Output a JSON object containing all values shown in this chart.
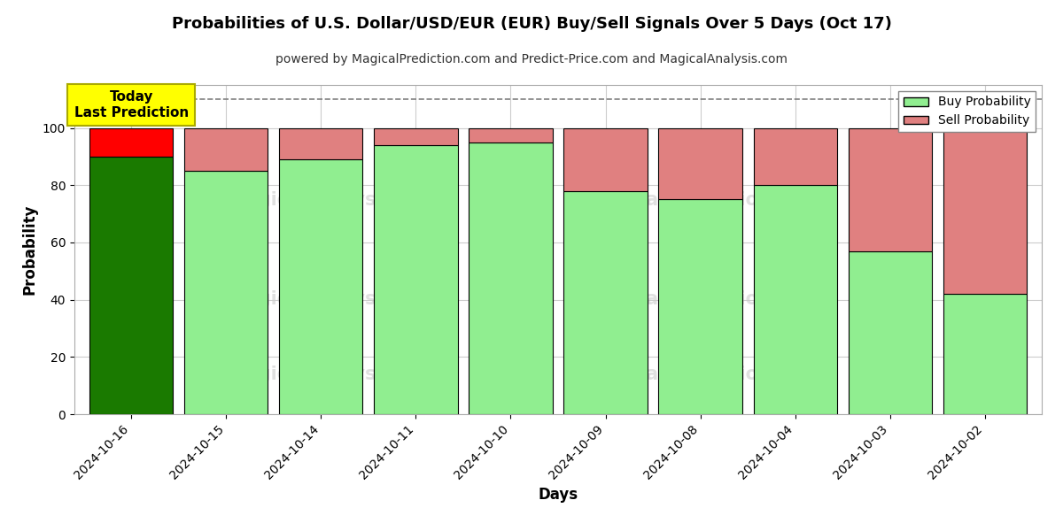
{
  "title": "Probabilities of U.S. Dollar/USD/EUR (EUR) Buy/Sell Signals Over 5 Days (Oct 17)",
  "subtitle": "powered by MagicalPrediction.com and Predict-Price.com and MagicalAnalysis.com",
  "xlabel": "Days",
  "ylabel": "Probability",
  "categories": [
    "2024-10-16",
    "2024-10-15",
    "2024-10-14",
    "2024-10-11",
    "2024-10-10",
    "2024-10-09",
    "2024-10-08",
    "2024-10-04",
    "2024-10-03",
    "2024-10-02"
  ],
  "buy_values": [
    90,
    85,
    89,
    94,
    95,
    78,
    75,
    80,
    57,
    42
  ],
  "sell_values": [
    10,
    15,
    11,
    6,
    5,
    22,
    25,
    20,
    43,
    58
  ],
  "today_index": 0,
  "buy_color_today": "#1a7a00",
  "sell_color_today": "#ff0000",
  "buy_color_normal": "#90ee90",
  "sell_color_normal": "#e08080",
  "bar_edge_color": "#000000",
  "dashed_line_y": 110,
  "ylim": [
    0,
    115
  ],
  "yticks": [
    0,
    20,
    40,
    60,
    80,
    100
  ],
  "legend_buy_label": "Buy Probability",
  "legend_sell_label": "Sell Probability",
  "today_label_line1": "Today",
  "today_label_line2": "Last Prediction",
  "background_color": "#ffffff",
  "grid_color": "#cccccc",
  "bar_width": 0.88
}
